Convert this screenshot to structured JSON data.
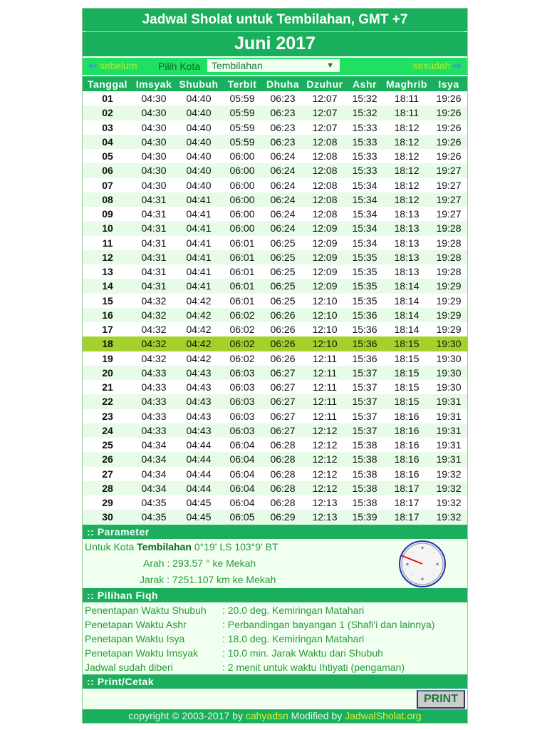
{
  "header": {
    "title": "Jadwal Sholat untuk Tembilahan, GMT +7",
    "month": "Juni 2017"
  },
  "nav": {
    "prev": "sebelum",
    "next": "sesudah",
    "city_label": "Pilih Kota",
    "city_value": "Tembilahan",
    "prev_icon": "arrow-left-icon",
    "next_icon": "arrow-right-icon"
  },
  "table": {
    "columns": [
      "Tanggal",
      "Imsyak",
      "Shubuh",
      "Terbit",
      "Dhuha",
      "Dzuhur",
      "Ashr",
      "Maghrib",
      "Isya"
    ],
    "highlight_row": "18",
    "rows": [
      [
        "01",
        "04:30",
        "04:40",
        "05:59",
        "06:23",
        "12:07",
        "15:32",
        "18:11",
        "19:26"
      ],
      [
        "02",
        "04:30",
        "04:40",
        "05:59",
        "06:23",
        "12:07",
        "15:32",
        "18:11",
        "19:26"
      ],
      [
        "03",
        "04:30",
        "04:40",
        "05:59",
        "06:23",
        "12:07",
        "15:33",
        "18:12",
        "19:26"
      ],
      [
        "04",
        "04:30",
        "04:40",
        "05:59",
        "06:23",
        "12:08",
        "15:33",
        "18:12",
        "19:26"
      ],
      [
        "05",
        "04:30",
        "04:40",
        "06:00",
        "06:24",
        "12:08",
        "15:33",
        "18:12",
        "19:26"
      ],
      [
        "06",
        "04:30",
        "04:40",
        "06:00",
        "06:24",
        "12:08",
        "15:33",
        "18:12",
        "19:27"
      ],
      [
        "07",
        "04:30",
        "04:40",
        "06:00",
        "06:24",
        "12:08",
        "15:34",
        "18:12",
        "19:27"
      ],
      [
        "08",
        "04:31",
        "04:41",
        "06:00",
        "06:24",
        "12:08",
        "15:34",
        "18:12",
        "19:27"
      ],
      [
        "09",
        "04:31",
        "04:41",
        "06:00",
        "06:24",
        "12:08",
        "15:34",
        "18:13",
        "19:27"
      ],
      [
        "10",
        "04:31",
        "04:41",
        "06:00",
        "06:24",
        "12:09",
        "15:34",
        "18:13",
        "19:28"
      ],
      [
        "11",
        "04:31",
        "04:41",
        "06:01",
        "06:25",
        "12:09",
        "15:34",
        "18:13",
        "19:28"
      ],
      [
        "12",
        "04:31",
        "04:41",
        "06:01",
        "06:25",
        "12:09",
        "15:35",
        "18:13",
        "19:28"
      ],
      [
        "13",
        "04:31",
        "04:41",
        "06:01",
        "06:25",
        "12:09",
        "15:35",
        "18:13",
        "19:28"
      ],
      [
        "14",
        "04:31",
        "04:41",
        "06:01",
        "06:25",
        "12:09",
        "15:35",
        "18:14",
        "19:29"
      ],
      [
        "15",
        "04:32",
        "04:42",
        "06:01",
        "06:25",
        "12:10",
        "15:35",
        "18:14",
        "19:29"
      ],
      [
        "16",
        "04:32",
        "04:42",
        "06:02",
        "06:26",
        "12:10",
        "15:36",
        "18:14",
        "19:29"
      ],
      [
        "17",
        "04:32",
        "04:42",
        "06:02",
        "06:26",
        "12:10",
        "15:36",
        "18:14",
        "19:29"
      ],
      [
        "18",
        "04:32",
        "04:42",
        "06:02",
        "06:26",
        "12:10",
        "15:36",
        "18:15",
        "19:30"
      ],
      [
        "19",
        "04:32",
        "04:42",
        "06:02",
        "06:26",
        "12:11",
        "15:36",
        "18:15",
        "19:30"
      ],
      [
        "20",
        "04:33",
        "04:43",
        "06:03",
        "06:27",
        "12:11",
        "15:37",
        "18:15",
        "19:30"
      ],
      [
        "21",
        "04:33",
        "04:43",
        "06:03",
        "06:27",
        "12:11",
        "15:37",
        "18:15",
        "19:30"
      ],
      [
        "22",
        "04:33",
        "04:43",
        "06:03",
        "06:27",
        "12:11",
        "15:37",
        "18:15",
        "19:31"
      ],
      [
        "23",
        "04:33",
        "04:43",
        "06:03",
        "06:27",
        "12:11",
        "15:37",
        "18:16",
        "19:31"
      ],
      [
        "24",
        "04:33",
        "04:43",
        "06:03",
        "06:27",
        "12:12",
        "15:37",
        "18:16",
        "19:31"
      ],
      [
        "25",
        "04:34",
        "04:44",
        "06:04",
        "06:28",
        "12:12",
        "15:38",
        "18:16",
        "19:31"
      ],
      [
        "26",
        "04:34",
        "04:44",
        "06:04",
        "06:28",
        "12:12",
        "15:38",
        "18:16",
        "19:31"
      ],
      [
        "27",
        "04:34",
        "04:44",
        "06:04",
        "06:28",
        "12:12",
        "15:38",
        "18:16",
        "19:32"
      ],
      [
        "28",
        "04:34",
        "04:44",
        "06:04",
        "06:28",
        "12:12",
        "15:38",
        "18:17",
        "19:32"
      ],
      [
        "29",
        "04:35",
        "04:45",
        "06:04",
        "06:28",
        "12:13",
        "15:38",
        "18:17",
        "19:32"
      ],
      [
        "30",
        "04:35",
        "04:45",
        "06:05",
        "06:29",
        "12:13",
        "15:39",
        "18:17",
        "19:32"
      ]
    ]
  },
  "parameter": {
    "section_title": ":: Parameter",
    "city_prefix": "Untuk Kota",
    "city": "Tembilahan",
    "coords": "0°19' LS 103°9' BT",
    "arah": "Arah :  293.57 ° ke Mekah",
    "jarak": "Jarak :  7251.107 km ke Mekah",
    "compass_icon": "qibla-compass-icon"
  },
  "fiqh": {
    "section_title": ":: Pilihan Fiqh",
    "items": [
      {
        "label": "Penentapan Waktu Shubuh",
        "value": ": 20.0 deg. Kemiringan Matahari"
      },
      {
        "label": "Penetapan Waktu Ashr",
        "value": ": Perbandingan bayangan 1 (Shafi'i dan lainnya)"
      },
      {
        "label": "Penetapan Waktu Isya",
        "value": ": 18.0 deg. Kemiringan Matahari"
      },
      {
        "label": "Penetapan Waktu Imsyak",
        "value": ": 10.0 min. Jarak Waktu dari Shubuh"
      },
      {
        "label": "Jadwal sudah diberi",
        "value": ": 2 menit untuk waktu Ihtiyati (pengaman)"
      }
    ]
  },
  "print": {
    "section_title": ":: Print/Cetak",
    "button": "PRINT"
  },
  "footer": {
    "prefix": "copyright © 2003-2017 by ",
    "author": "cahyadsn",
    "middle": " Modified by ",
    "site": "JadwalSholat.org"
  },
  "colors": {
    "primary": "#1aaf5d",
    "nav": "#1fe060",
    "highlight": "#a4d22a",
    "alt_row": "#e6fce6"
  }
}
